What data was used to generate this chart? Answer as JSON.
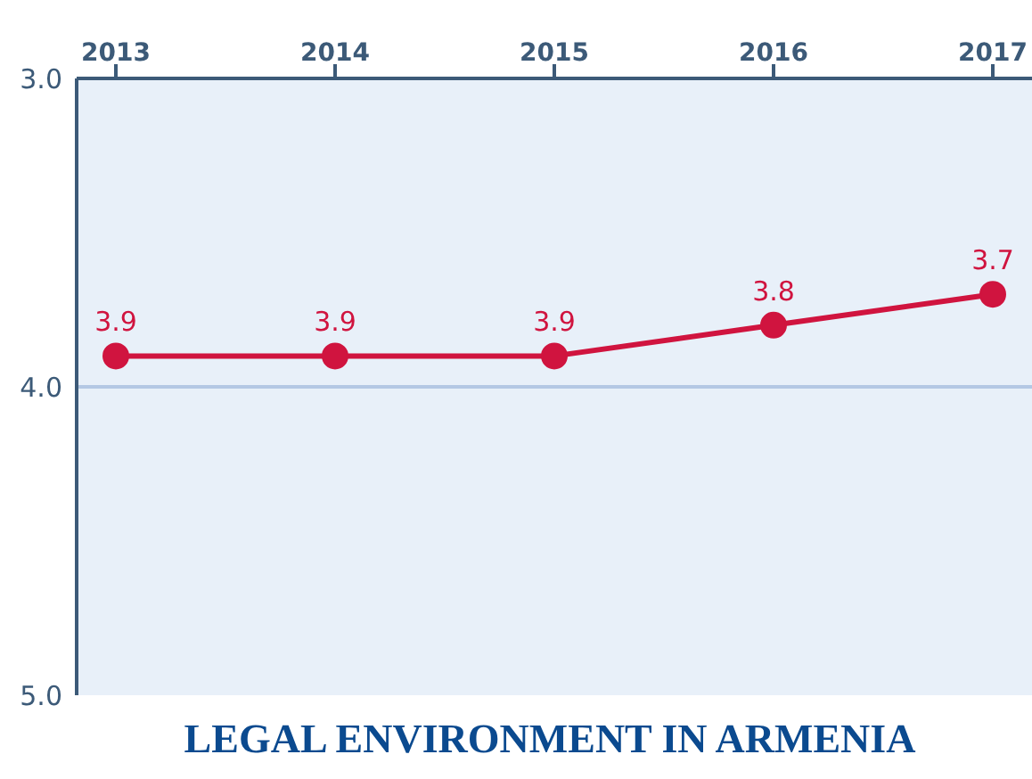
{
  "chart_data": {
    "type": "line",
    "title": "LEGAL ENVIRONMENT IN ARMENIA",
    "categories": [
      "2013",
      "2014",
      "2015",
      "2016",
      "2017"
    ],
    "series": [
      {
        "color": "#d0143f",
        "values": [
          3.9,
          3.9,
          3.9,
          3.8,
          3.7
        ]
      }
    ],
    "ylim": [
      5.0,
      3.0
    ],
    "yticks": [
      {
        "value": 3,
        "label": "3.0"
      },
      {
        "value": 4,
        "label": "4.0"
      },
      {
        "value": 5,
        "label": "5.0"
      }
    ],
    "ref_lines": [
      {
        "axis": "y",
        "value": 4,
        "color": "#b4c8e4"
      }
    ],
    "marker": "circle",
    "line_style": "solid",
    "data_labels": true
  }
}
